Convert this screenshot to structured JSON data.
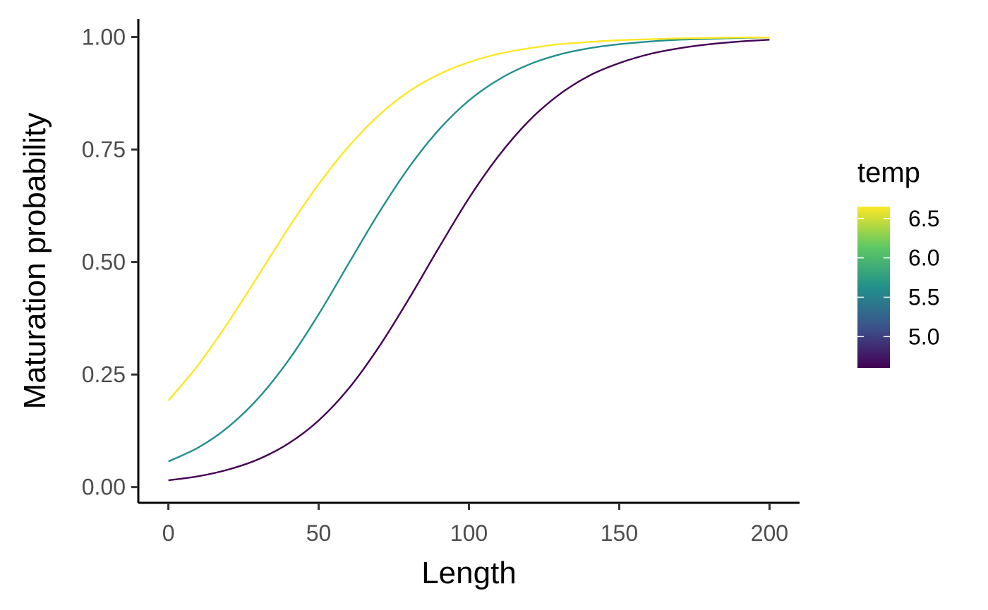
{
  "chart_data": {
    "type": "line",
    "xlabel": "Length",
    "ylabel": "Maturation probability",
    "xlim": [
      -10,
      210
    ],
    "ylim": [
      -0.035,
      1.04
    ],
    "xticks": [
      0,
      50,
      100,
      150,
      200
    ],
    "xtick_labels": [
      "0",
      "50",
      "100",
      "150",
      "200"
    ],
    "yticks": [
      0,
      0.25,
      0.5,
      0.75,
      1.0
    ],
    "ytick_labels": [
      "0.00",
      "0.25",
      "0.50",
      "0.75",
      "1.00"
    ],
    "grid": false,
    "legend": {
      "title": "temp",
      "position": "right",
      "type": "colorbar",
      "range": [
        4.6,
        6.65
      ],
      "ticks": [
        5.0,
        5.5,
        6.0,
        6.5
      ],
      "tick_labels": [
        "5.0",
        "5.5",
        "6.0",
        "6.5"
      ],
      "colors": [
        "#440154",
        "#3b528b",
        "#21908c",
        "#5dc863",
        "#fde725"
      ]
    },
    "series": [
      {
        "color": "#440154",
        "x": [
          0,
          10,
          20,
          30,
          40,
          50,
          60,
          70,
          80,
          90,
          100,
          110,
          120,
          130,
          140,
          150,
          160,
          170,
          180,
          190,
          200
        ],
        "y": [
          0.015,
          0.024,
          0.039,
          0.062,
          0.097,
          0.148,
          0.219,
          0.311,
          0.418,
          0.532,
          0.642,
          0.737,
          0.814,
          0.872,
          0.914,
          0.942,
          0.962,
          0.975,
          0.984,
          0.99,
          0.994
        ]
      },
      {
        "color": "#21908c",
        "x": [
          0,
          10,
          20,
          30,
          40,
          50,
          60,
          70,
          80,
          90,
          100,
          110,
          120,
          130,
          140,
          150,
          160,
          170,
          180,
          190,
          200
        ],
        "y": [
          0.057,
          0.088,
          0.134,
          0.198,
          0.282,
          0.384,
          0.497,
          0.609,
          0.71,
          0.794,
          0.859,
          0.906,
          0.939,
          0.961,
          0.975,
          0.984,
          0.99,
          0.994,
          0.996,
          0.998,
          0.999
        ]
      },
      {
        "color": "#fde725",
        "x": [
          0,
          10,
          20,
          30,
          40,
          50,
          60,
          70,
          80,
          90,
          100,
          110,
          120,
          130,
          140,
          150,
          160,
          170,
          180,
          190,
          200
        ],
        "y": [
          0.192,
          0.272,
          0.367,
          0.471,
          0.576,
          0.673,
          0.757,
          0.826,
          0.879,
          0.917,
          0.944,
          0.963,
          0.975,
          0.984,
          0.989,
          0.993,
          0.995,
          0.997,
          0.998,
          0.999,
          0.999
        ]
      }
    ]
  }
}
